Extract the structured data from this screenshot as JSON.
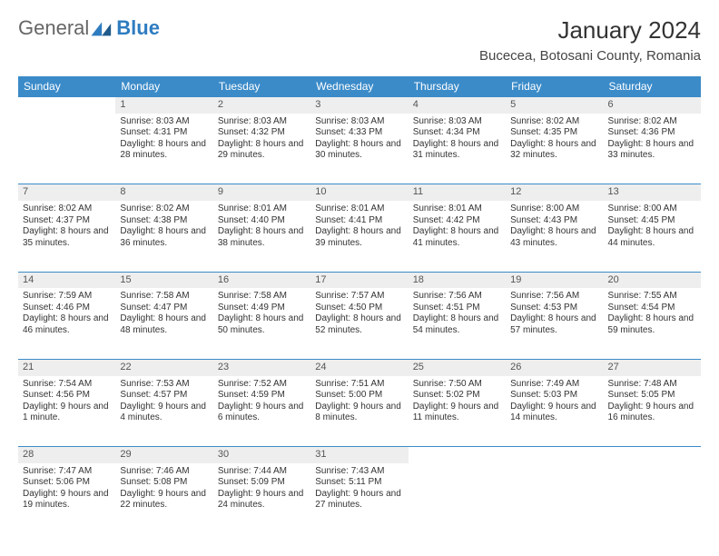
{
  "logo": {
    "text1": "General",
    "text2": "Blue"
  },
  "title": "January 2024",
  "location": "Bucecea, Botosani County, Romania",
  "colors": {
    "header_bg": "#3b8bc9",
    "daynum_bg": "#eeeeee",
    "border": "#3b8bc9"
  },
  "weekdays": [
    "Sunday",
    "Monday",
    "Tuesday",
    "Wednesday",
    "Thursday",
    "Friday",
    "Saturday"
  ],
  "weeks": [
    {
      "nums": [
        "",
        "1",
        "2",
        "3",
        "4",
        "5",
        "6"
      ],
      "cells": [
        [],
        [
          "Sunrise: 8:03 AM",
          "Sunset: 4:31 PM",
          "Daylight: 8 hours and 28 minutes."
        ],
        [
          "Sunrise: 8:03 AM",
          "Sunset: 4:32 PM",
          "Daylight: 8 hours and 29 minutes."
        ],
        [
          "Sunrise: 8:03 AM",
          "Sunset: 4:33 PM",
          "Daylight: 8 hours and 30 minutes."
        ],
        [
          "Sunrise: 8:03 AM",
          "Sunset: 4:34 PM",
          "Daylight: 8 hours and 31 minutes."
        ],
        [
          "Sunrise: 8:02 AM",
          "Sunset: 4:35 PM",
          "Daylight: 8 hours and 32 minutes."
        ],
        [
          "Sunrise: 8:02 AM",
          "Sunset: 4:36 PM",
          "Daylight: 8 hours and 33 minutes."
        ]
      ]
    },
    {
      "nums": [
        "7",
        "8",
        "9",
        "10",
        "11",
        "12",
        "13"
      ],
      "cells": [
        [
          "Sunrise: 8:02 AM",
          "Sunset: 4:37 PM",
          "Daylight: 8 hours and 35 minutes."
        ],
        [
          "Sunrise: 8:02 AM",
          "Sunset: 4:38 PM",
          "Daylight: 8 hours and 36 minutes."
        ],
        [
          "Sunrise: 8:01 AM",
          "Sunset: 4:40 PM",
          "Daylight: 8 hours and 38 minutes."
        ],
        [
          "Sunrise: 8:01 AM",
          "Sunset: 4:41 PM",
          "Daylight: 8 hours and 39 minutes."
        ],
        [
          "Sunrise: 8:01 AM",
          "Sunset: 4:42 PM",
          "Daylight: 8 hours and 41 minutes."
        ],
        [
          "Sunrise: 8:00 AM",
          "Sunset: 4:43 PM",
          "Daylight: 8 hours and 43 minutes."
        ],
        [
          "Sunrise: 8:00 AM",
          "Sunset: 4:45 PM",
          "Daylight: 8 hours and 44 minutes."
        ]
      ]
    },
    {
      "nums": [
        "14",
        "15",
        "16",
        "17",
        "18",
        "19",
        "20"
      ],
      "cells": [
        [
          "Sunrise: 7:59 AM",
          "Sunset: 4:46 PM",
          "Daylight: 8 hours and 46 minutes."
        ],
        [
          "Sunrise: 7:58 AM",
          "Sunset: 4:47 PM",
          "Daylight: 8 hours and 48 minutes."
        ],
        [
          "Sunrise: 7:58 AM",
          "Sunset: 4:49 PM",
          "Daylight: 8 hours and 50 minutes."
        ],
        [
          "Sunrise: 7:57 AM",
          "Sunset: 4:50 PM",
          "Daylight: 8 hours and 52 minutes."
        ],
        [
          "Sunrise: 7:56 AM",
          "Sunset: 4:51 PM",
          "Daylight: 8 hours and 54 minutes."
        ],
        [
          "Sunrise: 7:56 AM",
          "Sunset: 4:53 PM",
          "Daylight: 8 hours and 57 minutes."
        ],
        [
          "Sunrise: 7:55 AM",
          "Sunset: 4:54 PM",
          "Daylight: 8 hours and 59 minutes."
        ]
      ]
    },
    {
      "nums": [
        "21",
        "22",
        "23",
        "24",
        "25",
        "26",
        "27"
      ],
      "cells": [
        [
          "Sunrise: 7:54 AM",
          "Sunset: 4:56 PM",
          "Daylight: 9 hours and 1 minute."
        ],
        [
          "Sunrise: 7:53 AM",
          "Sunset: 4:57 PM",
          "Daylight: 9 hours and 4 minutes."
        ],
        [
          "Sunrise: 7:52 AM",
          "Sunset: 4:59 PM",
          "Daylight: 9 hours and 6 minutes."
        ],
        [
          "Sunrise: 7:51 AM",
          "Sunset: 5:00 PM",
          "Daylight: 9 hours and 8 minutes."
        ],
        [
          "Sunrise: 7:50 AM",
          "Sunset: 5:02 PM",
          "Daylight: 9 hours and 11 minutes."
        ],
        [
          "Sunrise: 7:49 AM",
          "Sunset: 5:03 PM",
          "Daylight: 9 hours and 14 minutes."
        ],
        [
          "Sunrise: 7:48 AM",
          "Sunset: 5:05 PM",
          "Daylight: 9 hours and 16 minutes."
        ]
      ]
    },
    {
      "nums": [
        "28",
        "29",
        "30",
        "31",
        "",
        "",
        ""
      ],
      "cells": [
        [
          "Sunrise: 7:47 AM",
          "Sunset: 5:06 PM",
          "Daylight: 9 hours and 19 minutes."
        ],
        [
          "Sunrise: 7:46 AM",
          "Sunset: 5:08 PM",
          "Daylight: 9 hours and 22 minutes."
        ],
        [
          "Sunrise: 7:44 AM",
          "Sunset: 5:09 PM",
          "Daylight: 9 hours and 24 minutes."
        ],
        [
          "Sunrise: 7:43 AM",
          "Sunset: 5:11 PM",
          "Daylight: 9 hours and 27 minutes."
        ],
        [],
        [],
        []
      ]
    }
  ]
}
